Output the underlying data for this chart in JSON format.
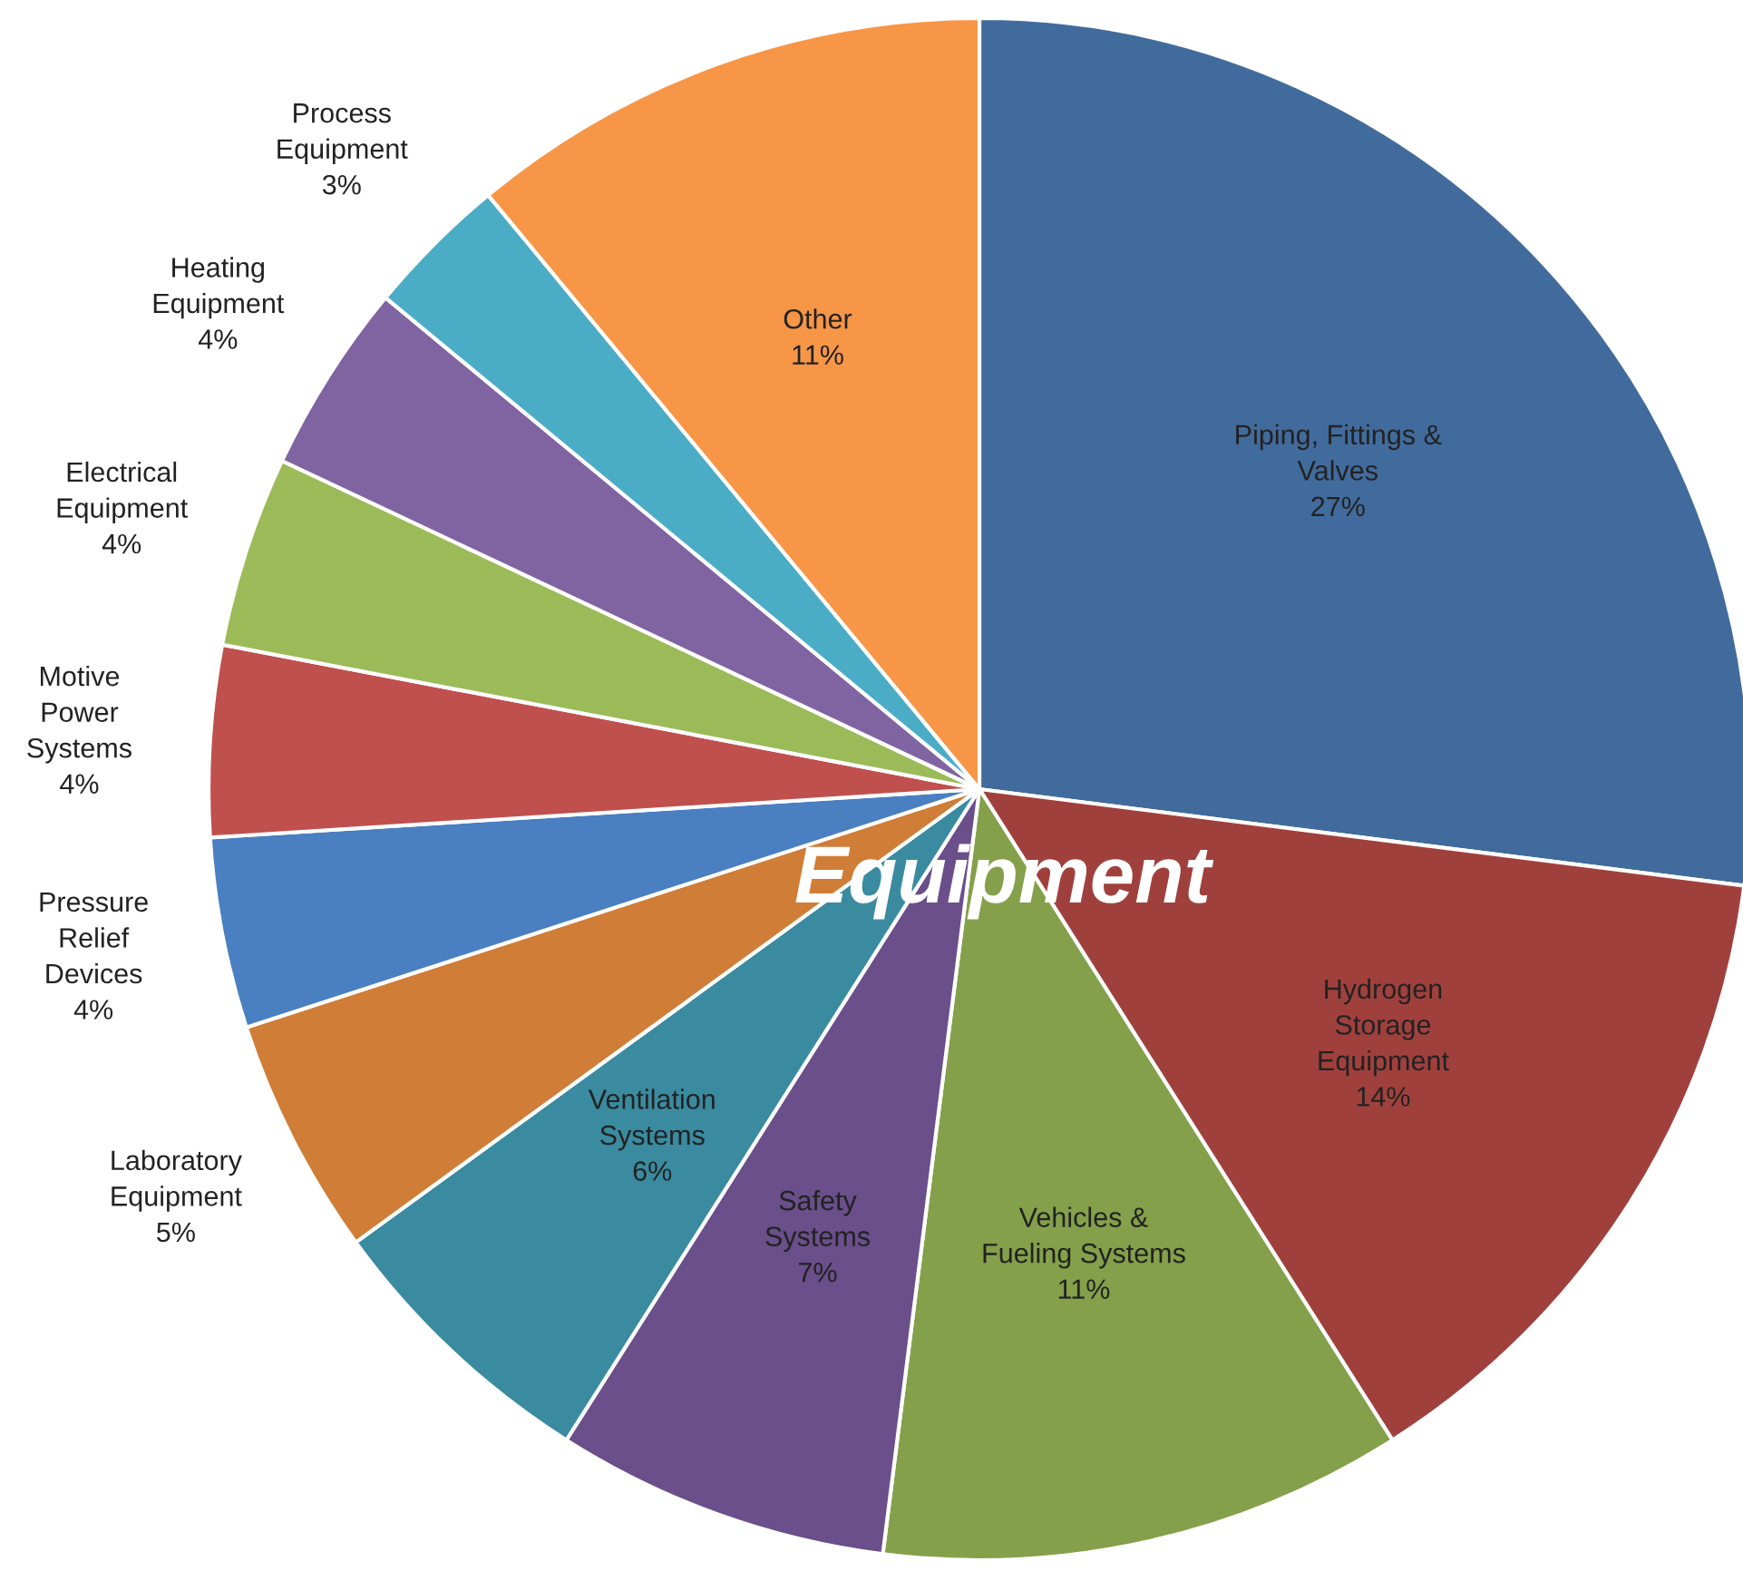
{
  "chart_data": {
    "type": "pie",
    "title": "Equipment",
    "categories": [
      "Piping, Fittings &\nValves",
      "Hydrogen\nStorage\nEquipment",
      "Vehicles &\nFueling Systems",
      "Safety\nSystems",
      "Ventilation\nSystems",
      "Laboratory\nEquipment",
      "Pressure\nRelief\nDevices",
      "Motive\nPower\nSystems",
      "Electrical\nEquipment",
      "Heating\nEquipment",
      "Process\nEquipment",
      "Other"
    ],
    "values": [
      27,
      14,
      11,
      7,
      6,
      5,
      4,
      4,
      4,
      4,
      3,
      11
    ],
    "colors": [
      "#416b9c",
      "#a0403d",
      "#84a04a",
      "#6a4f8b",
      "#3a8ba0",
      "#d07d37",
      "#4a7fc1",
      "#c0504d",
      "#9bbb59",
      "#8064a2",
      "#4bacc6",
      "#f79646"
    ],
    "value_labels": [
      "27%",
      "14%",
      "11%",
      "7%",
      "6%",
      "5%",
      "4%",
      "4%",
      "4%",
      "4%",
      "3%",
      "11%"
    ]
  }
}
